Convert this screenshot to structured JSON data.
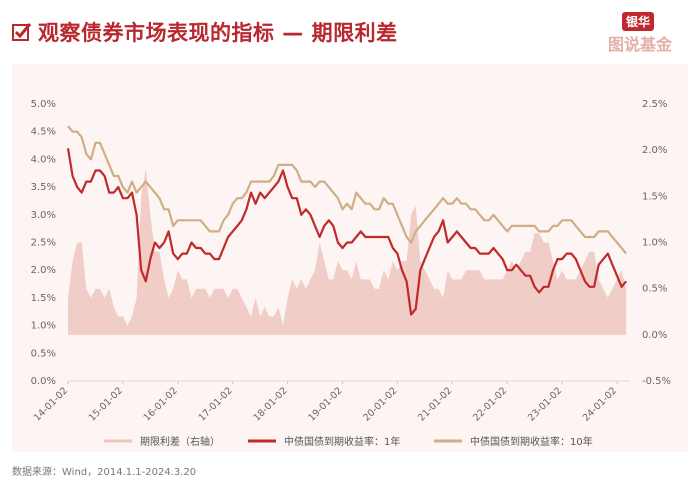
{
  "header": {
    "title": "观察债券市场表现的指标 — 期限利差",
    "logo_top": "银华",
    "logo_bottom": "图说基金"
  },
  "footer": {
    "source": "数据来源：Wind，2014.1.1-2024.3.20"
  },
  "colors": {
    "title": "#b8282e",
    "one_year": "#bf2a2a",
    "ten_year": "#cfae86",
    "spread": "#efc5c0",
    "panel": "#fdf5f3"
  },
  "chart_data": {
    "type": "line",
    "title": "观察债券市场表现的指标 — 期限利差",
    "x_start": "2014-01",
    "x_end": "2024-03",
    "frequency": "monthly",
    "x_tick_labels": [
      "14-01-02",
      "15-01-02",
      "16-01-02",
      "17-01-02",
      "18-01-02",
      "19-01-02",
      "20-01-02",
      "21-01-02",
      "22-01-02",
      "23-01-02",
      "24-01-02"
    ],
    "y_left": {
      "ticks": [
        "0.0%",
        "0.5%",
        "1.0%",
        "1.5%",
        "2.0%",
        "2.5%",
        "3.0%",
        "3.5%",
        "4.0%",
        "4.5%",
        "5.0%"
      ],
      "range": [
        0,
        5
      ]
    },
    "y_right": {
      "ticks": [
        "-0.5%",
        "0.0%",
        "0.5%",
        "1.0%",
        "1.5%",
        "2.0%",
        "2.5%"
      ],
      "range": [
        -0.5,
        2.5
      ]
    },
    "legend_position": "bottom",
    "series": [
      {
        "name": "期限利差（右轴）",
        "type": "area",
        "axis": "right",
        "derived": "10Y minus 1Y"
      },
      {
        "name": "中债国债到期收益率：1年",
        "type": "line",
        "axis": "left",
        "values": [
          4.2,
          3.7,
          3.5,
          3.4,
          3.6,
          3.6,
          3.8,
          3.8,
          3.7,
          3.4,
          3.4,
          3.5,
          3.3,
          3.3,
          3.4,
          3.0,
          2.0,
          1.8,
          2.2,
          2.5,
          2.4,
          2.5,
          2.7,
          2.3,
          2.2,
          2.3,
          2.3,
          2.5,
          2.4,
          2.4,
          2.3,
          2.3,
          2.2,
          2.2,
          2.4,
          2.6,
          2.7,
          2.8,
          2.9,
          3.1,
          3.4,
          3.2,
          3.4,
          3.3,
          3.4,
          3.5,
          3.6,
          3.8,
          3.5,
          3.3,
          3.3,
          3.0,
          3.1,
          3.0,
          2.8,
          2.6,
          2.8,
          2.9,
          2.8,
          2.5,
          2.4,
          2.5,
          2.5,
          2.6,
          2.7,
          2.6,
          2.6,
          2.6,
          2.6,
          2.6,
          2.6,
          2.4,
          2.3,
          2.0,
          1.8,
          1.2,
          1.3,
          2.0,
          2.2,
          2.4,
          2.6,
          2.7,
          2.9,
          2.5,
          2.6,
          2.7,
          2.6,
          2.5,
          2.4,
          2.4,
          2.3,
          2.3,
          2.3,
          2.4,
          2.3,
          2.2,
          2.0,
          2.0,
          2.1,
          2.0,
          1.9,
          1.9,
          1.7,
          1.6,
          1.7,
          1.7,
          2.0,
          2.2,
          2.2,
          2.3,
          2.3,
          2.2,
          2.0,
          1.8,
          1.7,
          1.7,
          2.1,
          2.2,
          2.3,
          2.1,
          1.9,
          1.7,
          1.8
        ]
      },
      {
        "name": "中债国债到期收益率：10年",
        "type": "line",
        "axis": "left",
        "values": [
          4.6,
          4.5,
          4.5,
          4.4,
          4.1,
          4.0,
          4.3,
          4.3,
          4.1,
          3.9,
          3.7,
          3.7,
          3.5,
          3.4,
          3.6,
          3.4,
          3.5,
          3.6,
          3.5,
          3.4,
          3.3,
          3.1,
          3.1,
          2.8,
          2.9,
          2.9,
          2.9,
          2.9,
          2.9,
          2.9,
          2.8,
          2.7,
          2.7,
          2.7,
          2.9,
          3.0,
          3.2,
          3.3,
          3.3,
          3.4,
          3.6,
          3.6,
          3.6,
          3.6,
          3.6,
          3.7,
          3.9,
          3.9,
          3.9,
          3.9,
          3.8,
          3.6,
          3.6,
          3.6,
          3.5,
          3.6,
          3.6,
          3.5,
          3.4,
          3.3,
          3.1,
          3.2,
          3.1,
          3.4,
          3.3,
          3.2,
          3.2,
          3.1,
          3.1,
          3.3,
          3.2,
          3.2,
          3.0,
          2.8,
          2.6,
          2.5,
          2.7,
          2.8,
          2.9,
          3.0,
          3.1,
          3.2,
          3.3,
          3.2,
          3.2,
          3.3,
          3.2,
          3.2,
          3.1,
          3.1,
          3.0,
          2.9,
          2.9,
          3.0,
          2.9,
          2.8,
          2.7,
          2.8,
          2.8,
          2.8,
          2.8,
          2.8,
          2.8,
          2.7,
          2.7,
          2.7,
          2.8,
          2.8,
          2.9,
          2.9,
          2.9,
          2.8,
          2.7,
          2.6,
          2.6,
          2.6,
          2.7,
          2.7,
          2.7,
          2.6,
          2.5,
          2.4,
          2.3
        ]
      }
    ]
  }
}
